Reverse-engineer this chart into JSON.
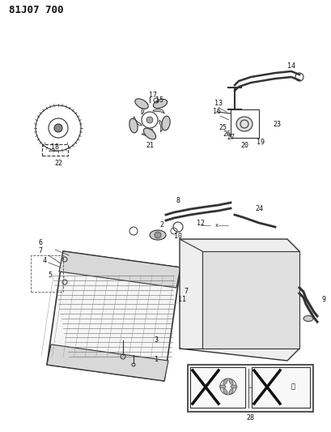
{
  "title": "81J07 700",
  "title_fontsize": 9,
  "title_weight": "bold",
  "bg_color": "#ffffff",
  "line_color": "#333333",
  "text_color": "#111111",
  "fig_width": 4.09,
  "fig_height": 5.33,
  "dpi": 100
}
